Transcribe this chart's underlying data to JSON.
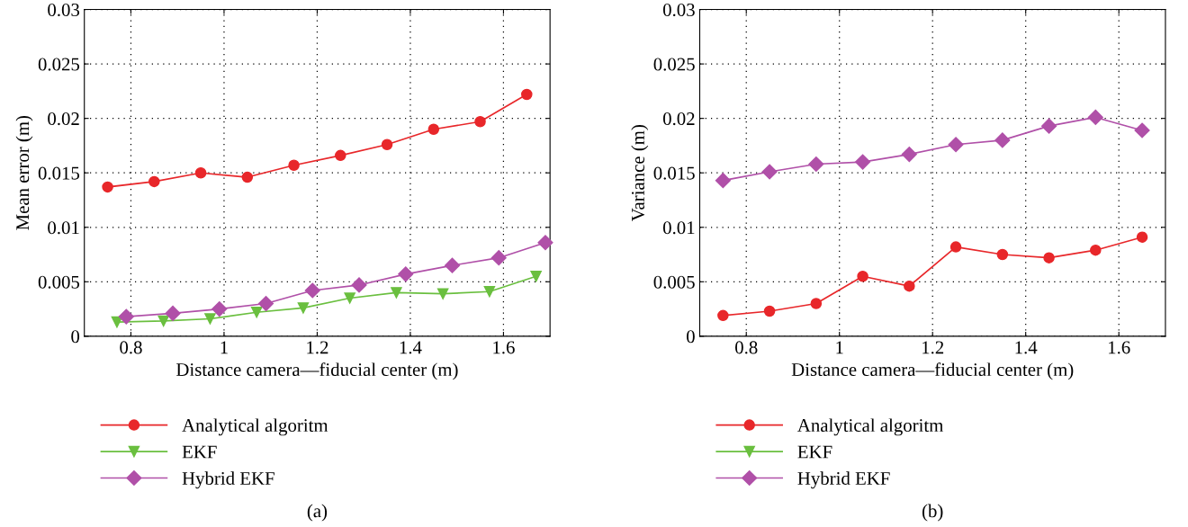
{
  "chart_data": [
    {
      "type": "line",
      "xlabel": "Distance camera—fiducial center (m)",
      "ylabel": "Mean error (m)",
      "annotations": [
        "(a)"
      ],
      "xlim": [
        0.7,
        1.7
      ],
      "xticks": [
        0.8,
        1,
        1.2,
        1.4,
        1.6
      ],
      "ylim": [
        0,
        0.03
      ],
      "yticks": [
        0,
        0.005,
        0.01,
        0.015,
        0.02,
        0.025,
        0.03
      ],
      "grid": true,
      "legend": "bottom",
      "line_style": "solid",
      "series": [
        {
          "name": "Analytical algoritm",
          "color": "#e8272a",
          "marker": "circle",
          "x": [
            0.75,
            0.85,
            0.95,
            1.05,
            1.15,
            1.25,
            1.35,
            1.45,
            1.55,
            1.65
          ],
          "values": [
            0.0137,
            0.0142,
            0.015,
            0.0146,
            0.0157,
            0.0166,
            0.0176,
            0.019,
            0.0197,
            0.0222
          ]
        },
        {
          "name": "EKF",
          "color": "#6abf3f",
          "marker": "triangle",
          "x": [
            0.77,
            0.87,
            0.97,
            1.07,
            1.17,
            1.27,
            1.37,
            1.47,
            1.57,
            1.67
          ],
          "values": [
            0.0013,
            0.0014,
            0.0016,
            0.0022,
            0.0026,
            0.0035,
            0.004,
            0.0039,
            0.0041,
            0.0055
          ]
        },
        {
          "name": "Hybrid EKF",
          "color": "#b050a8",
          "marker": "diamond",
          "x": [
            0.79,
            0.89,
            0.99,
            1.09,
            1.19,
            1.29,
            1.39,
            1.49,
            1.59,
            1.69
          ],
          "values": [
            0.0018,
            0.0021,
            0.0025,
            0.003,
            0.0042,
            0.0047,
            0.0057,
            0.0065,
            0.0072,
            0.0086
          ]
        }
      ]
    },
    {
      "type": "line",
      "xlabel": "Distance camera—fiducial center (m)",
      "ylabel": "Variance (m)",
      "annotations": [
        "(b)"
      ],
      "xlim": [
        0.7,
        1.7
      ],
      "xticks": [
        0.8,
        1,
        1.2,
        1.4,
        1.6
      ],
      "ylim": [
        0,
        0.03
      ],
      "yticks": [
        0,
        0.005,
        0.01,
        0.015,
        0.02,
        0.025,
        0.03
      ],
      "grid": true,
      "legend": "bottom",
      "line_style": "solid",
      "series": [
        {
          "name": "Analytical algoritm",
          "color": "#e8272a",
          "marker": "circle",
          "x": [
            0.75,
            0.85,
            0.95,
            1.05,
            1.15,
            1.25,
            1.35,
            1.45,
            1.55,
            1.65
          ],
          "values": [
            0.0019,
            0.0023,
            0.003,
            0.0055,
            0.0046,
            0.0082,
            0.0075,
            0.0072,
            0.0079,
            0.0091
          ]
        },
        {
          "name": "EKF",
          "color": "#6abf3f",
          "marker": "triangle"
        },
        {
          "name": "Hybrid EKF",
          "color": "#b050a8",
          "marker": "diamond",
          "x": [
            0.75,
            0.85,
            0.95,
            1.05,
            1.15,
            1.25,
            1.35,
            1.45,
            1.55,
            1.65
          ],
          "values": [
            0.0143,
            0.0151,
            0.0158,
            0.016,
            0.0167,
            0.0176,
            0.018,
            0.0193,
            0.0201,
            0.0189
          ]
        }
      ]
    }
  ]
}
